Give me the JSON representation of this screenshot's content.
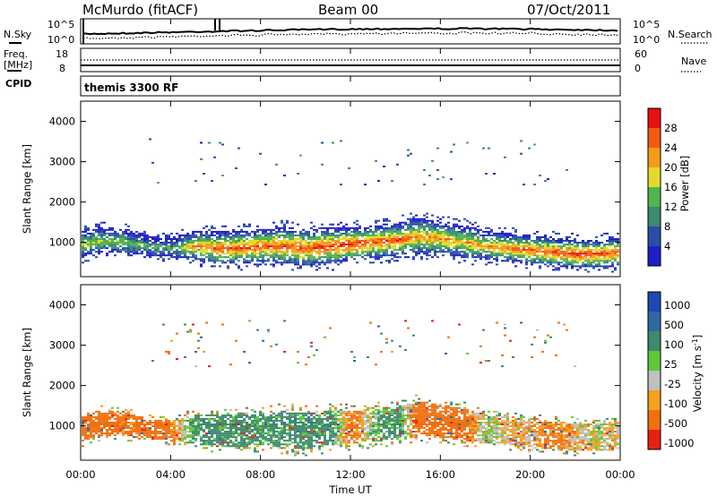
{
  "header": {
    "station": "McMurdo (fitACF)",
    "beam": "Beam 00",
    "date": "07/Oct/2011"
  },
  "noise_panel": {
    "left_label": "N.Sky",
    "right_label": "N.Search",
    "left_ticks": [
      "10^5",
      "10^0"
    ],
    "right_ticks": [
      "10^5",
      "10^0"
    ]
  },
  "freq_panel": {
    "left_label_1": "Freq.",
    "left_label_2": "[MHz]",
    "left_ticks": [
      "18",
      "8"
    ],
    "right_label": "Nave",
    "right_ticks": [
      "60",
      "0"
    ],
    "cpid_label": "CPID",
    "program_name": "themis 3300 RF"
  },
  "chart_data": [
    {
      "type": "heatmap",
      "title": "Power [dB]",
      "ylabel": "Slant Range [km]",
      "xlabel": "Time UT",
      "xlim": [
        "00:00",
        "24:00"
      ],
      "ylim": [
        150,
        4500
      ],
      "yticks": [
        "1000",
        "2000",
        "3000",
        "4000"
      ],
      "colorbar": {
        "label": "Power [dB]",
        "ticks": [
          "4",
          "8",
          "12",
          "16",
          "20",
          "24",
          "28"
        ],
        "bins": [
          {
            "lower": 0,
            "color": "#1e1ec8"
          },
          {
            "lower": 4,
            "color": "#2a4ea8"
          },
          {
            "lower": 8,
            "color": "#3a8a74"
          },
          {
            "lower": 12,
            "color": "#52b44c"
          },
          {
            "lower": 16,
            "color": "#e6d82a"
          },
          {
            "lower": 20,
            "color": "#f59a1a"
          },
          {
            "lower": 24,
            "color": "#f25a12"
          },
          {
            "lower": 28,
            "color": "#e81010"
          }
        ]
      },
      "backscatter_band": {
        "x_hours": [
          0,
          1,
          2,
          3,
          4,
          5,
          6,
          7,
          8,
          9,
          10,
          11,
          12,
          13,
          14,
          15,
          16,
          17,
          18,
          19,
          20,
          21,
          22,
          23,
          24
        ],
        "center_km": [
          950,
          1050,
          1000,
          900,
          850,
          900,
          850,
          850,
          900,
          900,
          850,
          900,
          950,
          1000,
          1050,
          1150,
          1100,
          1000,
          900,
          850,
          800,
          750,
          700,
          700,
          750
        ],
        "half_width_km": [
          350,
          300,
          300,
          250,
          250,
          350,
          400,
          400,
          400,
          450,
          450,
          450,
          400,
          400,
          400,
          450,
          400,
          400,
          350,
          350,
          350,
          350,
          350,
          350,
          350
        ],
        "peak_power_db": [
          18,
          18,
          16,
          14,
          14,
          24,
          28,
          28,
          28,
          28,
          28,
          30,
          30,
          28,
          28,
          24,
          24,
          22,
          24,
          26,
          28,
          28,
          30,
          28,
          28
        ]
      }
    },
    {
      "type": "heatmap",
      "title": "Velocity [m s^-1]",
      "ylabel": "Slant Range [km]",
      "xlabel": "Time UT",
      "xlim": [
        "00:00",
        "24:00"
      ],
      "ylim": [
        150,
        4500
      ],
      "yticks": [
        "1000",
        "2000",
        "3000",
        "4000"
      ],
      "xticks": [
        "00:00",
        "04:00",
        "08:00",
        "12:00",
        "16:00",
        "20:00",
        "00:00"
      ],
      "colorbar": {
        "label": "Velocity [m s^-1]",
        "ticks": [
          "1000",
          "500",
          "100",
          "25",
          "-25",
          "-100",
          "-500",
          "-1000"
        ],
        "bins": [
          {
            "lower": 1000,
            "color": "#1e48b4"
          },
          {
            "lower": 500,
            "color": "#2e6aa0"
          },
          {
            "lower": 100,
            "color": "#3e8a6e"
          },
          {
            "lower": 25,
            "color": "#5ec83a"
          },
          {
            "lower": -25,
            "color": "#c0c0c0"
          },
          {
            "lower": -100,
            "color": "#f5a020"
          },
          {
            "lower": -500,
            "color": "#f07010"
          },
          {
            "lower": -1000,
            "color": "#e82010"
          }
        ]
      },
      "backscatter_band": {
        "x_hours": [
          0,
          1,
          2,
          3,
          4,
          5,
          6,
          7,
          8,
          9,
          10,
          11,
          12,
          13,
          14,
          15,
          16,
          17,
          18,
          19,
          20,
          21,
          22,
          23,
          24
        ],
        "center_km": [
          950,
          1050,
          1000,
          900,
          850,
          900,
          850,
          850,
          900,
          900,
          850,
          900,
          950,
          1000,
          1050,
          1150,
          1100,
          1000,
          900,
          850,
          800,
          750,
          700,
          700,
          750
        ],
        "half_width_km": [
          350,
          300,
          300,
          250,
          250,
          350,
          400,
          400,
          400,
          450,
          450,
          450,
          400,
          400,
          400,
          450,
          400,
          400,
          350,
          350,
          350,
          350,
          350,
          350,
          350
        ],
        "dominant_velocity_ms": [
          -200,
          -200,
          -150,
          -200,
          -150,
          150,
          150,
          150,
          150,
          150,
          150,
          150,
          -150,
          50,
          150,
          -200,
          -200,
          -200,
          50,
          -50,
          -50,
          -150,
          -50,
          0,
          -50
        ]
      }
    }
  ]
}
